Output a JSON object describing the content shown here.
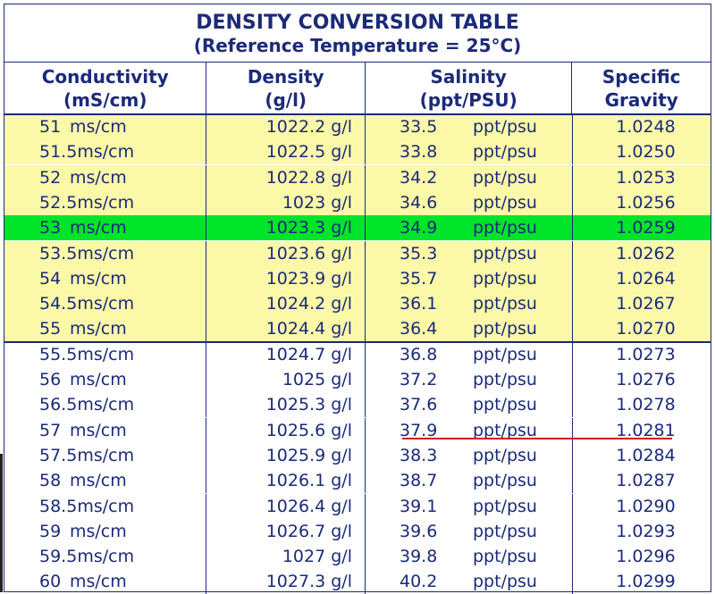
{
  "title": {
    "line1": "DENSITY CONVERSION TABLE",
    "line2": "(Reference Temperature = 25°C)"
  },
  "headers": [
    {
      "line1": "Conductivity",
      "line2": "(mS/cm)"
    },
    {
      "line1": "Density",
      "line2": "(g/l)"
    },
    {
      "line1": "Salinity",
      "line2": "(ppt/PSU)"
    },
    {
      "line1": "Specific",
      "line2": "Gravity"
    }
  ],
  "colors": {
    "text": "#1b2a7a",
    "yellow_band": "#fbf9a8",
    "highlight": "#00e42a",
    "underline": "#d11818"
  },
  "units": {
    "conductivity": "ms/cm",
    "density": "g/l",
    "salinity": "ppt/psu"
  },
  "chart_data": {
    "type": "table",
    "title": "DENSITY CONVERSION TABLE (Reference Temperature = 25°C)",
    "columns": [
      "Conductivity (mS/cm)",
      "Density (g/l)",
      "Salinity (ppt/PSU)",
      "Specific Gravity"
    ],
    "rows": [
      {
        "conductivity": "51",
        "density": "1022.2",
        "salinity": "33.5",
        "gravity": "1.0248",
        "band": "yellow"
      },
      {
        "conductivity": "51.5",
        "density": "1022.5",
        "salinity": "33.8",
        "gravity": "1.0250",
        "band": "yellow"
      },
      {
        "conductivity": "52",
        "density": "1022.8",
        "salinity": "34.2",
        "gravity": "1.0253",
        "band": "yellow"
      },
      {
        "conductivity": "52.5",
        "density": "1023",
        "salinity": "34.6",
        "gravity": "1.0256",
        "band": "yellow"
      },
      {
        "conductivity": "53",
        "density": "1023.3",
        "salinity": "34.9",
        "gravity": "1.0259",
        "band": "green"
      },
      {
        "conductivity": "53.5",
        "density": "1023.6",
        "salinity": "35.3",
        "gravity": "1.0262",
        "band": "yellow"
      },
      {
        "conductivity": "54",
        "density": "1023.9",
        "salinity": "35.7",
        "gravity": "1.0264",
        "band": "yellow"
      },
      {
        "conductivity": "54.5",
        "density": "1024.2",
        "salinity": "36.1",
        "gravity": "1.0267",
        "band": "yellow"
      },
      {
        "conductivity": "55",
        "density": "1024.4",
        "salinity": "36.4",
        "gravity": "1.0270",
        "band": "yellow"
      },
      {
        "conductivity": "55.5",
        "density": "1024.7",
        "salinity": "36.8",
        "gravity": "1.0273",
        "band": "white"
      },
      {
        "conductivity": "56",
        "density": "1025",
        "salinity": "37.2",
        "gravity": "1.0276",
        "band": "white"
      },
      {
        "conductivity": "56.5",
        "density": "1025.3",
        "salinity": "37.6",
        "gravity": "1.0278",
        "band": "white"
      },
      {
        "conductivity": "57",
        "density": "1025.6",
        "salinity": "37.9",
        "gravity": "1.0281",
        "band": "white"
      },
      {
        "conductivity": "57.5",
        "density": "1025.9",
        "salinity": "38.3",
        "gravity": "1.0284",
        "band": "white"
      },
      {
        "conductivity": "58",
        "density": "1026.1",
        "salinity": "38.7",
        "gravity": "1.0287",
        "band": "white"
      },
      {
        "conductivity": "58.5",
        "density": "1026.4",
        "salinity": "39.1",
        "gravity": "1.0290",
        "band": "white"
      },
      {
        "conductivity": "59",
        "density": "1026.7",
        "salinity": "39.6",
        "gravity": "1.0293",
        "band": "white"
      },
      {
        "conductivity": "59.5",
        "density": "1027",
        "salinity": "39.8",
        "gravity": "1.0296",
        "band": "white"
      },
      {
        "conductivity": "60",
        "density": "1027.3",
        "salinity": "40.2",
        "gravity": "1.0299",
        "band": "white"
      }
    ]
  }
}
